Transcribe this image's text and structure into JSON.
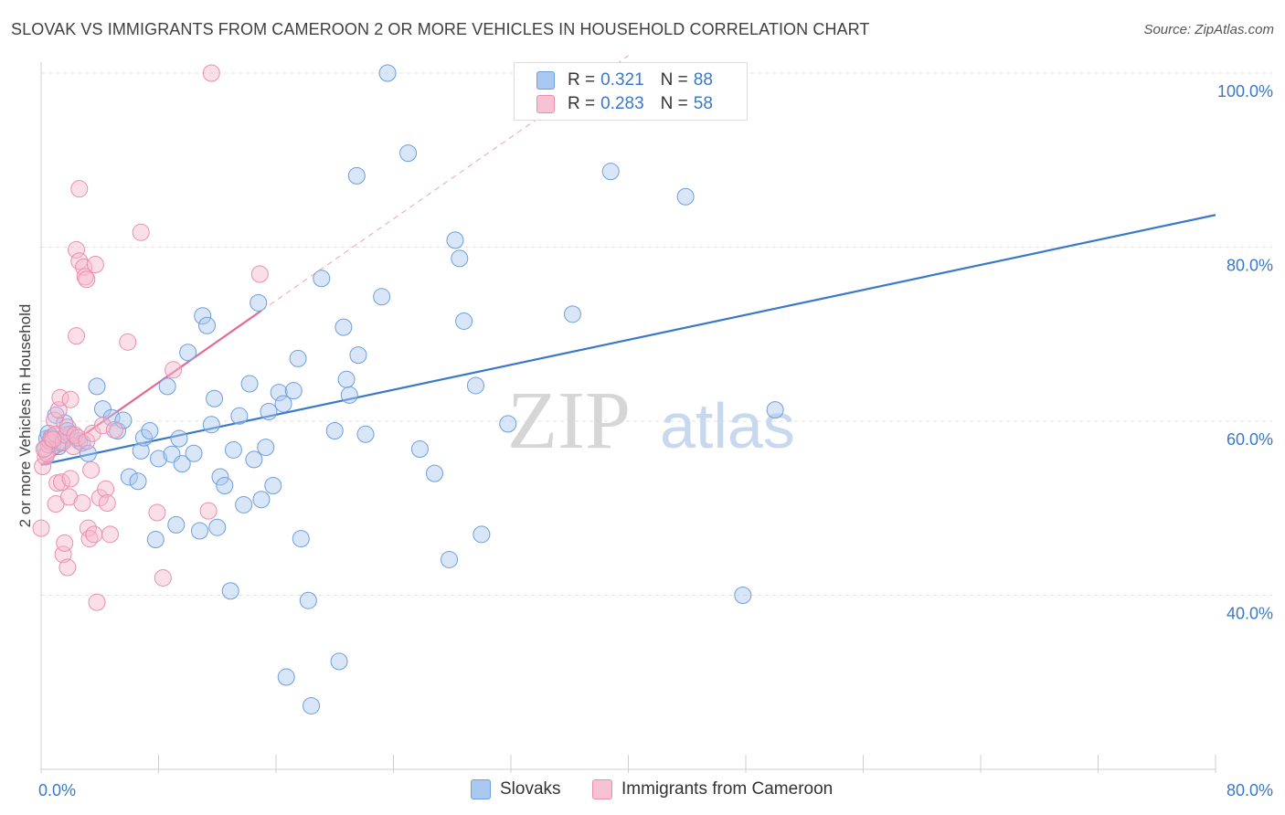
{
  "title": "SLOVAK VS IMMIGRANTS FROM CAMEROON 2 OR MORE VEHICLES IN HOUSEHOLD CORRELATION CHART",
  "source": "Source: ZipAtlas.com",
  "watermark": {
    "zip": "ZIP",
    "atlas": "atlas"
  },
  "colors": {
    "slovak": "#3a78c8",
    "slovak_fill": "#aac8f0",
    "cameroon": "#e46a92",
    "cameroon_fill": "#f7b8cc",
    "axis_text": "#3a78c8",
    "grid": "#e2e2e2"
  },
  "legend": {
    "rows": [
      {
        "r_label": "R =",
        "r_value": "0.321",
        "n_label": "N =",
        "n_value": "88"
      },
      {
        "r_label": "R =",
        "r_value": "0.283",
        "n_label": "N =",
        "n_value": "58"
      }
    ],
    "series": [
      "Slovaks",
      "Immigrants from Cameroon"
    ]
  },
  "chart_data": {
    "type": "scatter",
    "title": "SLOVAK VS IMMIGRANTS FROM CAMEROON 2 OR MORE VEHICLES IN HOUSEHOLD CORRELATION CHART",
    "xlabel": "",
    "ylabel": "2 or more Vehicles in Household",
    "xlim": [
      0,
      80
    ],
    "ylim": [
      20,
      100
    ],
    "x_tick_labels": [
      "0.0%",
      "80.0%"
    ],
    "y_ticks": [
      40,
      60,
      80,
      100
    ],
    "y_tick_labels": [
      "40.0%",
      "60.0%",
      "80.0%",
      "100.0%"
    ],
    "grid": true,
    "legend_position": "top-center",
    "series": [
      {
        "name": "Slovaks",
        "r": 0.321,
        "n": 88,
        "trend": {
          "x": [
            0,
            80
          ],
          "y": [
            55.0,
            83.7
          ]
        },
        "points": [
          [
            0.3,
            56.9
          ],
          [
            0.4,
            58.0
          ],
          [
            0.7,
            58.2
          ],
          [
            0.8,
            57.4
          ],
          [
            1.0,
            60.7
          ],
          [
            1.4,
            57.5
          ],
          [
            1.6,
            59.8
          ],
          [
            1.8,
            58.9
          ],
          [
            2.0,
            58.5
          ],
          [
            2.6,
            57.7
          ],
          [
            2.8,
            57.5
          ],
          [
            3.2,
            56.3
          ],
          [
            3.8,
            64.0
          ],
          [
            4.2,
            61.4
          ],
          [
            4.8,
            60.4
          ],
          [
            5.2,
            58.9
          ],
          [
            5.6,
            60.1
          ],
          [
            6.0,
            53.6
          ],
          [
            6.6,
            53.1
          ],
          [
            6.8,
            56.6
          ],
          [
            7.0,
            58.1
          ],
          [
            7.4,
            58.9
          ],
          [
            7.8,
            46.4
          ],
          [
            8.0,
            55.7
          ],
          [
            8.6,
            64.0
          ],
          [
            8.9,
            56.2
          ],
          [
            9.2,
            48.1
          ],
          [
            9.4,
            58.0
          ],
          [
            9.6,
            55.1
          ],
          [
            10.0,
            67.9
          ],
          [
            10.4,
            56.3
          ],
          [
            10.8,
            47.4
          ],
          [
            11.0,
            72.1
          ],
          [
            11.3,
            71.0
          ],
          [
            11.6,
            59.6
          ],
          [
            11.8,
            62.6
          ],
          [
            12.0,
            47.8
          ],
          [
            12.2,
            53.6
          ],
          [
            12.5,
            52.6
          ],
          [
            12.9,
            40.5
          ],
          [
            13.1,
            56.7
          ],
          [
            13.5,
            60.6
          ],
          [
            13.8,
            50.4
          ],
          [
            14.2,
            64.3
          ],
          [
            14.5,
            55.6
          ],
          [
            14.8,
            73.6
          ],
          [
            15.0,
            51.0
          ],
          [
            15.3,
            57.0
          ],
          [
            15.5,
            61.1
          ],
          [
            15.8,
            52.6
          ],
          [
            16.2,
            63.3
          ],
          [
            16.5,
            62.0
          ],
          [
            16.7,
            30.6
          ],
          [
            17.2,
            63.5
          ],
          [
            17.5,
            67.2
          ],
          [
            17.7,
            46.5
          ],
          [
            18.2,
            39.4
          ],
          [
            18.4,
            27.3
          ],
          [
            19.1,
            76.4
          ],
          [
            20.0,
            58.9
          ],
          [
            20.3,
            32.4
          ],
          [
            20.6,
            70.8
          ],
          [
            20.8,
            64.8
          ],
          [
            21.0,
            63.0
          ],
          [
            21.6,
            67.6
          ],
          [
            21.5,
            88.2
          ],
          [
            22.1,
            58.5
          ],
          [
            23.2,
            74.3
          ],
          [
            23.6,
            100.0
          ],
          [
            25.0,
            90.8
          ],
          [
            25.8,
            56.8
          ],
          [
            26.8,
            54.0
          ],
          [
            27.8,
            44.1
          ],
          [
            28.2,
            80.8
          ],
          [
            28.5,
            78.7
          ],
          [
            28.8,
            71.5
          ],
          [
            29.6,
            64.1
          ],
          [
            30.0,
            47.0
          ],
          [
            31.8,
            59.7
          ],
          [
            36.2,
            72.3
          ],
          [
            38.2,
            100.0
          ],
          [
            38.8,
            88.7
          ],
          [
            43.9,
            85.8
          ],
          [
            44.2,
            100.0
          ],
          [
            47.8,
            40.0
          ],
          [
            50.0,
            61.3
          ],
          [
            0.5,
            58.6
          ],
          [
            1.2,
            57.1
          ]
        ]
      },
      {
        "name": "Immigrants from Cameroon",
        "r": 0.283,
        "n": 58,
        "trend": {
          "x": [
            0,
            15
          ],
          "y": [
            55.0,
            72.7
          ]
        },
        "trend_extension": {
          "x": [
            15,
            40
          ],
          "y": [
            72.7,
            102.0
          ]
        },
        "points": [
          [
            0.0,
            47.7
          ],
          [
            0.1,
            54.8
          ],
          [
            0.3,
            55.9
          ],
          [
            0.4,
            56.3
          ],
          [
            0.5,
            57.3
          ],
          [
            0.6,
            57.7
          ],
          [
            0.7,
            58.0
          ],
          [
            0.9,
            60.1
          ],
          [
            1.0,
            50.5
          ],
          [
            1.0,
            58.5
          ],
          [
            1.2,
            61.3
          ],
          [
            1.1,
            52.9
          ],
          [
            1.3,
            62.7
          ],
          [
            1.4,
            53.0
          ],
          [
            1.5,
            57.6
          ],
          [
            1.5,
            44.7
          ],
          [
            1.6,
            46.0
          ],
          [
            1.7,
            58.4
          ],
          [
            1.8,
            43.2
          ],
          [
            1.8,
            59.3
          ],
          [
            1.9,
            51.3
          ],
          [
            2.0,
            53.4
          ],
          [
            2.0,
            62.5
          ],
          [
            2.2,
            57.1
          ],
          [
            2.3,
            58.4
          ],
          [
            2.4,
            69.8
          ],
          [
            2.4,
            79.7
          ],
          [
            2.5,
            58.1
          ],
          [
            2.6,
            78.4
          ],
          [
            2.6,
            86.7
          ],
          [
            2.8,
            50.6
          ],
          [
            2.9,
            77.7
          ],
          [
            3.0,
            76.6
          ],
          [
            3.1,
            76.3
          ],
          [
            3.1,
            57.7
          ],
          [
            3.2,
            47.7
          ],
          [
            3.3,
            46.5
          ],
          [
            3.4,
            54.4
          ],
          [
            3.5,
            58.6
          ],
          [
            3.6,
            47.0
          ],
          [
            3.7,
            78.0
          ],
          [
            3.8,
            39.2
          ],
          [
            4.0,
            51.2
          ],
          [
            4.2,
            59.5
          ],
          [
            4.4,
            52.2
          ],
          [
            4.5,
            50.6
          ],
          [
            4.7,
            47.0
          ],
          [
            5.0,
            59.0
          ],
          [
            5.9,
            69.1
          ],
          [
            6.8,
            81.7
          ],
          [
            7.9,
            49.5
          ],
          [
            8.3,
            42.0
          ],
          [
            9.0,
            65.9
          ],
          [
            11.4,
            49.7
          ],
          [
            11.6,
            100.0
          ],
          [
            14.9,
            76.9
          ],
          [
            0.2,
            56.8
          ],
          [
            0.8,
            57.9
          ]
        ]
      }
    ]
  }
}
